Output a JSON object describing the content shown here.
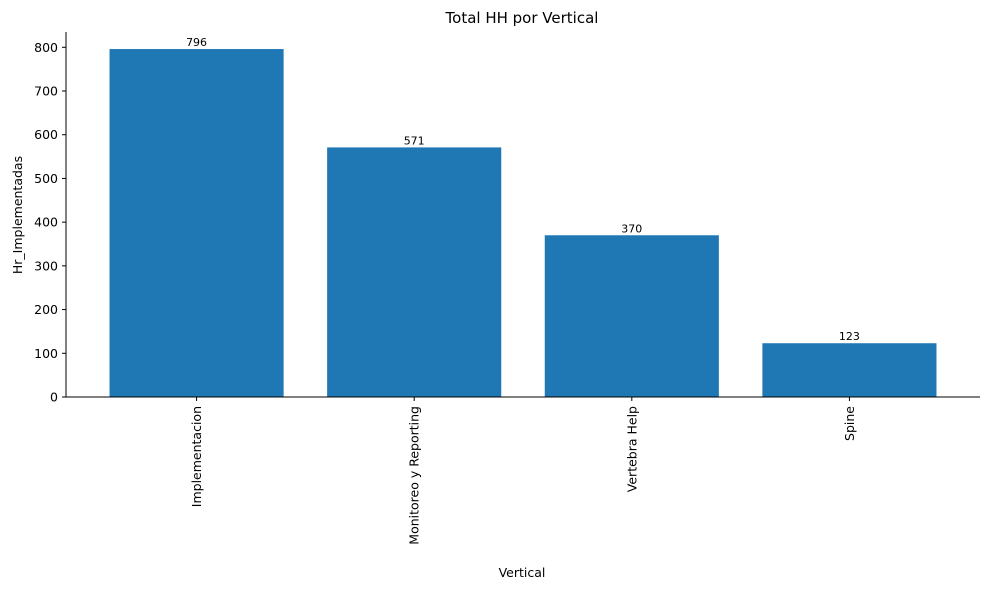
{
  "chart_data": {
    "type": "bar",
    "title": "Total HH por Vertical",
    "xlabel": "Vertical",
    "ylabel": "Hr_Implementadas",
    "categories": [
      "Implementacion",
      "Monitoreo y Reporting",
      "Vertebra Help",
      "Spine"
    ],
    "values": [
      796,
      571,
      370,
      123
    ],
    "data_labels": [
      "796",
      "571",
      "370",
      "123"
    ],
    "ylim": [
      0,
      835
    ],
    "yticks": [
      0,
      100,
      200,
      300,
      400,
      500,
      600,
      700,
      800
    ],
    "bar_color": "#1f77b4",
    "grid": false,
    "legend": "none",
    "spines": "left-bottom"
  }
}
